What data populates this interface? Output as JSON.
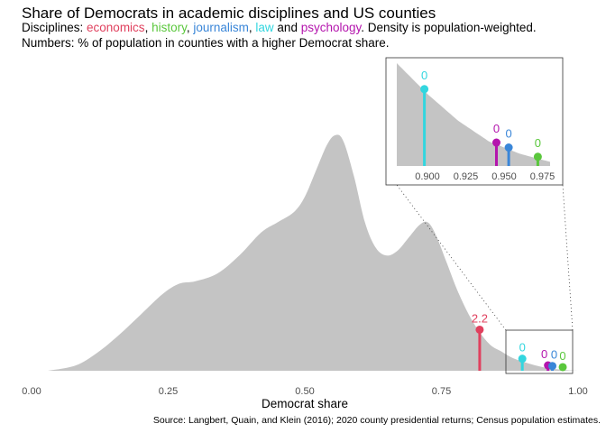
{
  "title": "Share of Democrats in academic disciplines and US counties",
  "subtitle": {
    "prefix": "Disciplines: ",
    "items": [
      {
        "label": "economics",
        "color": "#e0405e",
        "sep": ", "
      },
      {
        "label": "history",
        "color": "#5ac73c",
        "sep": ", "
      },
      {
        "label": "journalism",
        "color": "#3a86d8",
        "sep": ", "
      },
      {
        "label": "law",
        "color": "#33d6df",
        "sep": " and "
      },
      {
        "label": "psychology",
        "color": "#b415ad",
        "sep": ""
      }
    ],
    "suffix": ". Density is population-weighted.",
    "line2": "Numbers: % of population in counties with a higher Democrat share."
  },
  "caption": "Source: Langbert, Quain, and Klein (2016); 2020 county presidential returns; Census population estimates.",
  "chart_data": {
    "type": "area",
    "xlabel": "Democrat share",
    "ylabel": "",
    "xlim": [
      0,
      1
    ],
    "x_ticks": [
      "0.00",
      "0.25",
      "0.50",
      "0.75",
      "1.00"
    ],
    "density_color": "#c4c4c4",
    "density": {
      "x": [
        0.03,
        0.08,
        0.12,
        0.16,
        0.2,
        0.24,
        0.27,
        0.3,
        0.34,
        0.38,
        0.42,
        0.45,
        0.48,
        0.5,
        0.52,
        0.54,
        0.555,
        0.57,
        0.59,
        0.61,
        0.63,
        0.65,
        0.67,
        0.69,
        0.71,
        0.725,
        0.74,
        0.76,
        0.78,
        0.8,
        0.82,
        0.84,
        0.86,
        0.88,
        0.9,
        0.92,
        0.94,
        0.96,
        0.98,
        1.0
      ],
      "y": [
        0.0,
        0.02,
        0.07,
        0.14,
        0.22,
        0.3,
        0.34,
        0.35,
        0.38,
        0.45,
        0.54,
        0.58,
        0.62,
        0.68,
        0.78,
        0.88,
        0.92,
        0.9,
        0.76,
        0.58,
        0.48,
        0.45,
        0.47,
        0.52,
        0.57,
        0.58,
        0.53,
        0.42,
        0.31,
        0.22,
        0.15,
        0.1,
        0.075,
        0.05,
        0.035,
        0.022,
        0.012,
        0.006,
        0.002,
        0.0
      ]
    },
    "series": [
      {
        "name": "economics",
        "x": 0.82,
        "value_label": "2.2",
        "color": "#e0405e"
      },
      {
        "name": "law",
        "x": 0.898,
        "value_label": "0",
        "color": "#33d6df"
      },
      {
        "name": "psychology",
        "x": 0.945,
        "value_label": "0",
        "color": "#b415ad"
      },
      {
        "name": "journalism",
        "x": 0.953,
        "value_label": "0",
        "color": "#3a86d8"
      },
      {
        "name": "history",
        "x": 0.972,
        "value_label": "0",
        "color": "#5ac73c"
      }
    ],
    "inset": {
      "xlim": [
        0.88,
        0.98
      ],
      "x_ticks": [
        "0.900",
        "0.925",
        "0.950",
        "0.975"
      ]
    },
    "grid": false
  }
}
